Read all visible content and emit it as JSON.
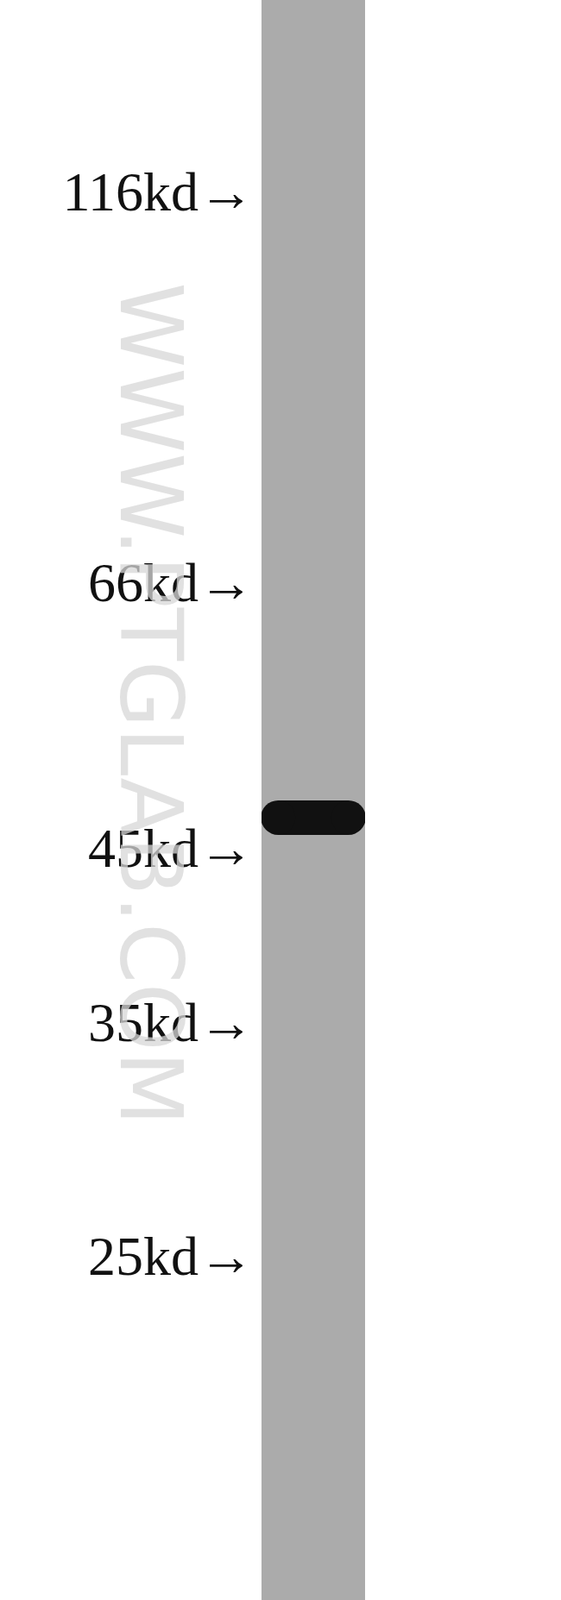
{
  "chart_data": {
    "type": "western_blot",
    "log": "y",
    "ylim": [
      15.2,
      152.9
    ],
    "yticks": [
      {
        "value": 116,
        "label": "116kd→"
      },
      {
        "value": 66,
        "label": "66kd→"
      },
      {
        "value": 45,
        "label": "45kd→"
      },
      {
        "value": 35,
        "label": "35kd→"
      },
      {
        "value": 25,
        "label": "25kd→"
      }
    ],
    "values": [
      47
    ],
    "color": "#111111",
    "lane_color": "#ababab",
    "grid": false,
    "tick_labels": "y",
    "annotations": [
      "WWW.PTGLAB.COM"
    ]
  }
}
